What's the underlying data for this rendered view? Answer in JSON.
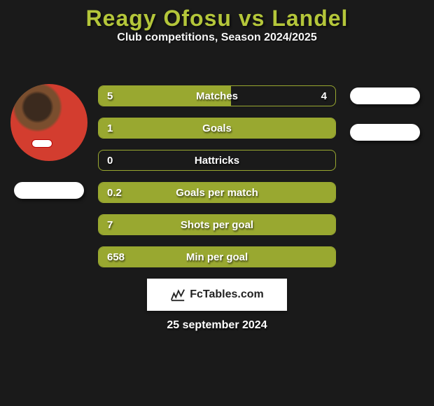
{
  "background_color": "#1a1a1a",
  "header": {
    "title": "Reagy Ofosu vs Landel",
    "title_color": "#b4c63a",
    "title_fontsize": 32,
    "subtitle": "Club competitions, Season 2024/2025",
    "subtitle_fontsize": 16
  },
  "players": {
    "left_name_label": "",
    "right_name_label_1": "",
    "right_name_label_2": ""
  },
  "stats": {
    "row_border_color": "#99a830",
    "row_fill_color": "#99a830",
    "label_fontsize": 15,
    "value_fontsize": 15,
    "rows": [
      {
        "label": "Matches",
        "left": "5",
        "right": "4",
        "fill_pct": 56
      },
      {
        "label": "Goals",
        "left": "1",
        "right": "",
        "fill_pct": 100
      },
      {
        "label": "Hattricks",
        "left": "0",
        "right": "",
        "fill_pct": 0
      },
      {
        "label": "Goals per match",
        "left": "0.2",
        "right": "",
        "fill_pct": 100
      },
      {
        "label": "Shots per goal",
        "left": "7",
        "right": "",
        "fill_pct": 100
      },
      {
        "label": "Min per goal",
        "left": "658",
        "right": "",
        "fill_pct": 100
      }
    ]
  },
  "brand": {
    "text": "FcTables.com",
    "icon_name": "fctables-logo-icon"
  },
  "date": "25 september 2024"
}
